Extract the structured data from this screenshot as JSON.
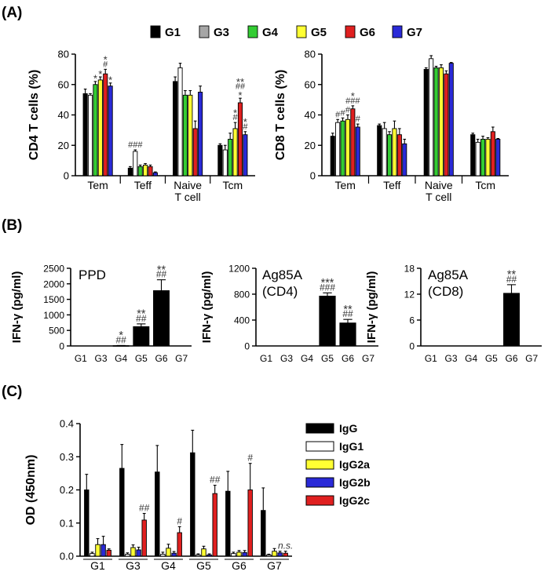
{
  "panel_labels": [
    "(A)",
    "(B)",
    "(C)"
  ],
  "legend_A": {
    "items": [
      {
        "name": "G1",
        "color": "#000000"
      },
      {
        "name": "G3",
        "color": "#a6a6a6"
      },
      {
        "name": "G4",
        "color": "#33cc33"
      },
      {
        "name": "G5",
        "color": "#ffff33"
      },
      {
        "name": "G6",
        "color": "#e02020"
      },
      {
        "name": "G7",
        "color": "#2a2ad8"
      }
    ]
  },
  "chart_data": [
    {
      "id": "A1",
      "type": "bar",
      "title": "",
      "ylabel": "CD4 T cells (%)",
      "ylim": [
        0,
        80
      ],
      "yticks": [
        0,
        20,
        40,
        60,
        80
      ],
      "categories": [
        "Tem",
        "Teff",
        "Naive T cell",
        "Tcm"
      ],
      "category_lines": [
        [
          "Tem"
        ],
        [
          "Teff"
        ],
        [
          "Naive",
          "T cell"
        ],
        [
          "Tcm"
        ]
      ],
      "series": [
        {
          "name": "G1",
          "color": "#000000",
          "values": [
            54,
            5,
            62,
            20
          ],
          "errors": [
            3,
            1,
            3,
            1
          ]
        },
        {
          "name": "G3",
          "color": "#ffffff",
          "values": [
            53,
            16,
            71,
            17
          ],
          "errors": [
            1,
            1,
            3,
            3
          ]
        },
        {
          "name": "G4",
          "color": "#33cc33",
          "values": [
            60,
            6,
            53,
            24
          ],
          "errors": [
            2,
            1,
            3,
            4
          ]
        },
        {
          "name": "G5",
          "color": "#ffff33",
          "values": [
            63,
            7,
            53,
            31
          ],
          "errors": [
            2,
            1,
            3,
            4
          ]
        },
        {
          "name": "G6",
          "color": "#e02020",
          "values": [
            67,
            6,
            31,
            48
          ],
          "errors": [
            3,
            1,
            5,
            3
          ]
        },
        {
          "name": "G7",
          "color": "#2a2ad8",
          "values": [
            59,
            2,
            55,
            27
          ],
          "errors": [
            2,
            0.5,
            4,
            2
          ]
        }
      ],
      "annotations": [
        {
          "category": 0,
          "series": 2,
          "lines": [
            "*"
          ]
        },
        {
          "category": 0,
          "series": 3,
          "lines": [
            "*"
          ]
        },
        {
          "category": 0,
          "series": 4,
          "lines": [
            "*",
            "#"
          ]
        },
        {
          "category": 0,
          "series": 5,
          "lines": [
            "*"
          ]
        },
        {
          "category": 1,
          "series": 1,
          "lines": [
            "###"
          ]
        },
        {
          "category": 3,
          "series": 3,
          "lines": [
            "*",
            "#"
          ]
        },
        {
          "category": 3,
          "series": 4,
          "lines": [
            "**",
            "##",
            "*"
          ]
        },
        {
          "category": 3,
          "series": 5,
          "lines": [
            "*",
            "#"
          ]
        }
      ]
    },
    {
      "id": "A2",
      "type": "bar",
      "title": "",
      "ylabel": "CD8 T cells (%)",
      "ylim": [
        0,
        80
      ],
      "yticks": [
        0,
        20,
        40,
        60,
        80
      ],
      "categories": [
        "Tem",
        "Teff",
        "Naive T cell",
        "Tcm"
      ],
      "category_lines": [
        [
          "Tem"
        ],
        [
          "Teff"
        ],
        [
          "Naive",
          "T cell"
        ],
        [
          "Tcm"
        ]
      ],
      "series": [
        {
          "name": "G1",
          "color": "#000000",
          "values": [
            26,
            33,
            70,
            27
          ],
          "errors": [
            2,
            1,
            1,
            1
          ]
        },
        {
          "name": "G3",
          "color": "#ffffff",
          "values": [
            35,
            31,
            77,
            22
          ],
          "errors": [
            2,
            4,
            2,
            2
          ]
        },
        {
          "name": "G4",
          "color": "#33cc33",
          "values": [
            36,
            27,
            71,
            24
          ],
          "errors": [
            2,
            2,
            1,
            2
          ]
        },
        {
          "name": "G5",
          "color": "#ffff33",
          "values": [
            37,
            31,
            71,
            24
          ],
          "errors": [
            3,
            5,
            2,
            1
          ]
        },
        {
          "name": "G6",
          "color": "#e02020",
          "values": [
            44,
            27,
            67,
            29
          ],
          "errors": [
            2,
            4,
            2,
            3
          ]
        },
        {
          "name": "G7",
          "color": "#2a2ad8",
          "values": [
            32,
            21,
            74,
            24
          ],
          "errors": [
            2,
            3,
            0.5,
            0.5
          ]
        }
      ],
      "annotations": [
        {
          "category": 0,
          "series": 1,
          "lines": [
            "#"
          ]
        },
        {
          "category": 0,
          "series": 2,
          "lines": [
            "#"
          ]
        },
        {
          "category": 0,
          "series": 3,
          "lines": [
            "#"
          ]
        },
        {
          "category": 0,
          "series": 4,
          "lines": [
            "*",
            "###"
          ]
        },
        {
          "category": 0,
          "series": 5,
          "lines": [
            "#"
          ]
        }
      ]
    },
    {
      "id": "B1",
      "type": "bar",
      "title": "PPD",
      "ylabel": "IFN-γ (pg/ml)",
      "ylim": [
        0,
        2500
      ],
      "yticks": [
        0,
        500,
        1000,
        1500,
        2000,
        2500
      ],
      "categories": [
        "G1",
        "G3",
        "G4",
        "G5",
        "G6",
        "G7"
      ],
      "values": [
        0,
        0,
        10,
        620,
        1780,
        0
      ],
      "errors": [
        0,
        0,
        5,
        90,
        350,
        0
      ],
      "annotations": [
        {
          "category": 2,
          "lines": [
            "*",
            "##"
          ]
        },
        {
          "category": 3,
          "lines": [
            "**",
            "##"
          ]
        },
        {
          "category": 4,
          "lines": [
            "**",
            "##"
          ]
        }
      ]
    },
    {
      "id": "B2",
      "type": "bar",
      "title": "Ag85A (CD4)",
      "title_lines": [
        "Ag85A",
        "(CD4)"
      ],
      "ylabel": "IFN-γ (pg/ml)",
      "ylim": [
        0,
        1200
      ],
      "yticks": [
        0,
        400,
        800,
        1200
      ],
      "categories": [
        "G1",
        "G3",
        "G4",
        "G5",
        "G6",
        "G7"
      ],
      "values": [
        0,
        0,
        0,
        770,
        355,
        0
      ],
      "errors": [
        0,
        0,
        0,
        50,
        55,
        0
      ],
      "annotations": [
        {
          "category": 3,
          "lines": [
            "***",
            "###"
          ]
        },
        {
          "category": 4,
          "lines": [
            "**",
            "##"
          ]
        }
      ]
    },
    {
      "id": "B3",
      "type": "bar",
      "title": "Ag85A (CD8)",
      "title_lines": [
        "Ag85A",
        "(CD8)"
      ],
      "ylabel": "IFN-γ (pg/ml)",
      "ylim": [
        0,
        18
      ],
      "yticks": [
        0,
        6,
        12,
        18
      ],
      "categories": [
        "G1",
        "G3",
        "G4",
        "G5",
        "G6",
        "G7"
      ],
      "values": [
        0,
        0,
        0,
        0,
        12.2,
        0
      ],
      "errors": [
        0,
        0,
        0,
        0,
        2,
        0
      ],
      "annotations": [
        {
          "category": 4,
          "lines": [
            "**",
            "##"
          ]
        }
      ]
    },
    {
      "id": "C",
      "type": "bar",
      "title": "",
      "ylabel": "OD (450nm)",
      "ylim": [
        0,
        0.4
      ],
      "yticks": [
        0.0,
        0.1,
        0.2,
        0.3,
        0.4
      ],
      "ytick_labels": [
        "0.0",
        "0.1",
        "0.2",
        "0.3",
        "0.4"
      ],
      "categories": [
        "G1",
        "G3",
        "G4",
        "G5",
        "G6",
        "G7"
      ],
      "series": [
        {
          "name": "IgG",
          "color": "#000000",
          "values": [
            0.2,
            0.265,
            0.254,
            0.312,
            0.196,
            0.138
          ],
          "errors": [
            0.047,
            0.072,
            0.08,
            0.068,
            0.06,
            0.068
          ]
        },
        {
          "name": "IgG1",
          "color": "#ffffff",
          "values": [
            0.008,
            0.006,
            0.006,
            0.004,
            0.008,
            0.004
          ],
          "errors": [
            0.004,
            0.004,
            0.006,
            0.003,
            0.004,
            0.002
          ]
        },
        {
          "name": "IgG2a",
          "color": "#ffff33",
          "values": [
            0.035,
            0.026,
            0.024,
            0.022,
            0.012,
            0.015
          ],
          "errors": [
            0.018,
            0.008,
            0.012,
            0.008,
            0.005,
            0.008
          ]
        },
        {
          "name": "IgG2b",
          "color": "#2a2ad8",
          "values": [
            0.035,
            0.019,
            0.009,
            0.004,
            0.011,
            0.01
          ],
          "errors": [
            0.025,
            0.008,
            0.005,
            0.003,
            0.006,
            0.005
          ]
        },
        {
          "name": "IgG2c",
          "color": "#e02020",
          "values": [
            0.018,
            0.109,
            0.071,
            0.189,
            0.2,
            0.009
          ],
          "errors": [
            0.004,
            0.02,
            0.018,
            0.025,
            0.08,
            0.006
          ]
        }
      ],
      "annotations": [
        {
          "category": 1,
          "series": 4,
          "lines": [
            "##"
          ]
        },
        {
          "category": 2,
          "series": 4,
          "lines": [
            "#"
          ]
        },
        {
          "category": 3,
          "series": 4,
          "lines": [
            "##"
          ]
        },
        {
          "category": 4,
          "series": 4,
          "lines": [
            "#"
          ]
        },
        {
          "category": 5,
          "series": 4,
          "lines": [
            "n.s."
          ],
          "italic": true
        }
      ],
      "legend": [
        "IgG",
        "IgG1",
        "IgG2a",
        "IgG2b",
        "IgG2c"
      ]
    }
  ]
}
